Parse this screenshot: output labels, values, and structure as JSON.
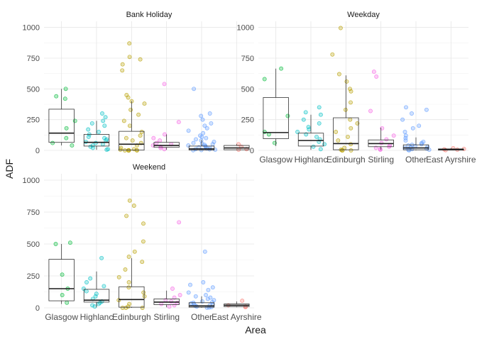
{
  "chart_data": {
    "type": "boxplot-jitter",
    "xlabel": "Area",
    "ylabel": "ADF",
    "ylim": [
      0,
      1050
    ],
    "yticks": [
      0,
      250,
      500,
      750,
      1000
    ],
    "categories": [
      "Glasgow",
      "Highland",
      "Edinburgh",
      "Stirling",
      "Other",
      "East Ayrshire"
    ],
    "category_tick_labels": [
      "Glasgow",
      "Highlanc",
      "Edinburgh",
      "Stirling",
      "Other",
      "East Ayrshire"
    ],
    "colors": {
      "Glasgow": "#00ba38",
      "Highland": "#00bfc4",
      "Edinburgh": "#b79f00",
      "Stirling": "#f564e3",
      "Other": "#619cff",
      "East Ayrshire": "#f8766d"
    },
    "panels": [
      {
        "strip": "Bank Holiday",
        "show_x_ticks": false,
        "boxes": [
          {
            "category": "Glasgow",
            "min": 40,
            "q1": 65,
            "median": 140,
            "q3": 335,
            "max": 500
          },
          {
            "category": "Highland",
            "min": 5,
            "q1": 35,
            "median": 65,
            "q3": 130,
            "max": 240
          },
          {
            "category": "Edinburgh",
            "min": 0,
            "q1": 2,
            "median": 50,
            "q3": 155,
            "max": 400
          },
          {
            "category": "Stirling",
            "min": 5,
            "q1": 25,
            "median": 40,
            "q3": 65,
            "max": 130
          },
          {
            "category": "Other",
            "min": 0,
            "q1": 3,
            "median": 12,
            "q3": 35,
            "max": 85
          },
          {
            "category": "East Ayrshire",
            "min": 2,
            "q1": 5,
            "median": 20,
            "q3": 40,
            "max": 50
          }
        ],
        "points": {
          "Glasgow": [
            500,
            440,
            420,
            240,
            180,
            100,
            60,
            40
          ],
          "Highland": [
            300,
            270,
            240,
            220,
            200,
            170,
            150,
            130,
            110,
            100,
            90,
            80,
            70,
            60,
            50,
            40,
            30,
            20,
            10,
            5
          ],
          "Edinburgh": [
            870,
            760,
            740,
            700,
            650,
            450,
            430,
            400,
            380,
            330,
            290,
            240,
            200,
            150,
            120,
            100,
            80,
            60,
            40,
            20,
            10,
            5,
            2,
            0,
            0,
            0,
            0,
            0
          ],
          "Stirling": [
            540,
            230,
            130,
            100,
            80,
            60,
            50,
            40,
            30,
            20,
            10
          ],
          "Other": [
            500,
            300,
            280,
            250,
            220,
            200,
            180,
            160,
            140,
            120,
            110,
            100,
            90,
            80,
            70,
            60,
            55,
            50,
            45,
            40,
            35,
            30,
            25,
            20,
            15,
            10,
            8,
            5,
            3,
            1
          ],
          "East Ayrshire": [
            50,
            30,
            10,
            5
          ]
        }
      },
      {
        "strip": "Weekday",
        "show_x_ticks": true,
        "boxes": [
          {
            "category": "Glasgow",
            "min": 35,
            "q1": 95,
            "median": 145,
            "q3": 430,
            "max": 665
          },
          {
            "category": "Highland",
            "min": 5,
            "q1": 35,
            "median": 80,
            "q3": 140,
            "max": 290
          },
          {
            "category": "Edinburgh",
            "min": 0,
            "q1": 5,
            "median": 55,
            "q3": 265,
            "max": 610
          },
          {
            "category": "Stirling",
            "min": 5,
            "q1": 30,
            "median": 55,
            "q3": 85,
            "max": 185
          },
          {
            "category": "Other",
            "min": 0,
            "q1": 5,
            "median": 20,
            "q3": 45,
            "max": 105
          },
          {
            "category": "East Ayrshire",
            "min": 0,
            "q1": 2,
            "median": 8,
            "q3": 12,
            "max": 18
          }
        ],
        "points": {
          "Glasgow": [
            665,
            580,
            280,
            150,
            130,
            60
          ],
          "Highland": [
            350,
            310,
            290,
            250,
            220,
            190,
            170,
            150,
            130,
            110,
            90,
            70,
            50,
            30,
            10
          ],
          "Edinburgh": [
            995,
            780,
            620,
            560,
            500,
            480,
            390,
            330,
            250,
            220,
            180,
            150,
            110,
            80,
            50,
            20,
            5,
            0,
            0,
            0
          ],
          "Stirling": [
            640,
            600,
            320,
            180,
            120,
            90,
            60,
            40,
            30,
            20,
            10,
            5
          ],
          "Other": [
            350,
            330,
            300,
            250,
            200,
            180,
            150,
            120,
            100,
            80,
            70,
            60,
            50,
            45,
            40,
            35,
            30,
            25,
            20,
            15,
            10,
            5,
            3,
            1
          ],
          "East Ayrshire": [
            18,
            12,
            8,
            5,
            2
          ]
        }
      },
      {
        "strip": "Weekend",
        "show_x_ticks": true,
        "boxes": [
          {
            "category": "Glasgow",
            "min": 30,
            "q1": 55,
            "median": 150,
            "q3": 380,
            "max": 500
          },
          {
            "category": "Highland",
            "min": 5,
            "q1": 45,
            "median": 60,
            "q3": 145,
            "max": 285
          },
          {
            "category": "Edinburgh",
            "min": 0,
            "q1": 5,
            "median": 65,
            "q3": 165,
            "max": 390
          },
          {
            "category": "Stirling",
            "min": 5,
            "q1": 25,
            "median": 45,
            "q3": 70,
            "max": 135
          },
          {
            "category": "Other",
            "min": 0,
            "q1": 5,
            "median": 15,
            "q3": 40,
            "max": 90
          },
          {
            "category": "East Ayrshire",
            "min": 5,
            "q1": 10,
            "median": 20,
            "q3": 30,
            "max": 50
          }
        ],
        "points": {
          "Glasgow": [
            510,
            500,
            260,
            150,
            100,
            40
          ],
          "Highland": [
            390,
            230,
            200,
            170,
            150,
            130,
            110,
            90,
            70,
            50,
            40,
            30,
            20,
            10
          ],
          "Edinburgh": [
            840,
            800,
            720,
            660,
            520,
            440,
            400,
            360,
            300,
            240,
            200,
            160,
            120,
            90,
            60,
            30,
            10,
            0,
            0,
            0
          ],
          "Stirling": [
            670,
            150,
            100,
            80,
            60,
            50,
            40,
            30,
            20,
            10
          ],
          "Other": [
            440,
            200,
            180,
            160,
            140,
            120,
            100,
            90,
            80,
            70,
            60,
            50,
            45,
            40,
            35,
            30,
            25,
            20,
            15,
            10,
            5,
            3,
            1
          ],
          "East Ayrshire": [
            55,
            20,
            10,
            5
          ]
        }
      }
    ]
  }
}
